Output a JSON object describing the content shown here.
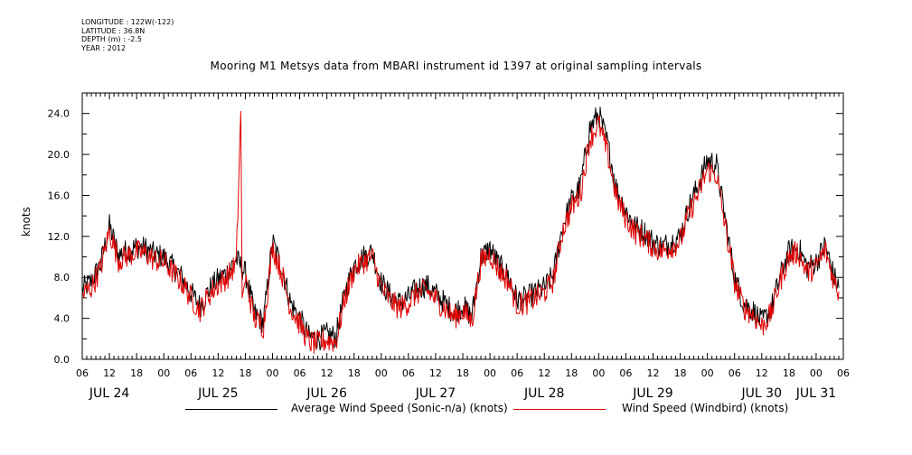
{
  "meta": {
    "longitude": "LONGITUDE : 122W(-122)",
    "latitude": "LATITUDE : 36.8N",
    "depth": "DEPTH (m) : -2.5",
    "year": "YEAR : 2012"
  },
  "chart_data": {
    "type": "line",
    "title": "Mooring M1 Metsys data from MBARI instrument id 1397 at original sampling intervals",
    "ylabel": "knots",
    "xlabel": "",
    "ylim": [
      0,
      26
    ],
    "xlim": [
      6,
      174
    ],
    "x_unit": "hours since 2012-07-24 00:00",
    "yticks": [
      0,
      4,
      8,
      12,
      16,
      20,
      24
    ],
    "ytick_labels": [
      "0.0",
      "4.0",
      "8.0",
      "12.0",
      "16.0",
      "20.0",
      "24.0"
    ],
    "xtick_hours": [
      6,
      12,
      18,
      24,
      30,
      36,
      42,
      48,
      54,
      60,
      66,
      72,
      78,
      84,
      90,
      96,
      102,
      108,
      114,
      120,
      126,
      132,
      138,
      144,
      150,
      156,
      162,
      168,
      174
    ],
    "xtick_labels": [
      "06",
      "12",
      "18",
      "00",
      "06",
      "12",
      "18",
      "00",
      "06",
      "12",
      "18",
      "00",
      "06",
      "12",
      "18",
      "00",
      "06",
      "12",
      "18",
      "00",
      "06",
      "12",
      "18",
      "00",
      "06",
      "12",
      "18",
      "00",
      "06"
    ],
    "day_label_hours": [
      12,
      36,
      60,
      84,
      108,
      132,
      156,
      168
    ],
    "day_labels": [
      "JUL 24",
      "JUL 25",
      "JUL 26",
      "JUL 27",
      "JUL 28",
      "JUL 29",
      "JUL 30",
      "JUL 31"
    ],
    "grid": false,
    "legend_position": "bottom",
    "series": [
      {
        "name": "Average Wind Speed (Sonic-n/a) (knots)",
        "color": "#000000",
        "x": [
          6,
          8,
          10,
          12,
          14,
          16,
          18,
          20,
          22,
          24,
          26,
          28,
          30,
          32,
          34,
          36,
          38,
          40,
          42,
          44,
          46,
          48,
          50,
          52,
          54,
          56,
          58,
          60,
          62,
          64,
          66,
          68,
          70,
          72,
          74,
          76,
          78,
          80,
          82,
          84,
          86,
          88,
          90,
          92,
          94,
          96,
          98,
          100,
          102,
          104,
          106,
          108,
          110,
          112,
          114,
          116,
          118,
          120,
          122,
          124,
          126,
          128,
          130,
          132,
          134,
          136,
          138,
          140,
          142,
          144,
          146,
          148,
          150,
          152,
          154,
          156,
          158,
          160,
          162,
          164,
          166,
          168,
          170,
          172,
          173
        ],
        "y": [
          6.8,
          7.6,
          9.2,
          13.0,
          10.2,
          10.6,
          11.0,
          10.8,
          10.2,
          10.0,
          9.0,
          8.0,
          6.5,
          5.2,
          6.8,
          7.8,
          8.5,
          9.8,
          8.4,
          4.5,
          3.6,
          11.5,
          9.0,
          5.5,
          4.0,
          2.2,
          2.0,
          2.4,
          2.2,
          6.5,
          9.2,
          10.0,
          10.5,
          7.5,
          6.2,
          5.5,
          6.0,
          7.0,
          7.2,
          6.4,
          5.5,
          4.6,
          5.2,
          4.2,
          10.0,
          10.8,
          9.2,
          8.2,
          5.8,
          6.0,
          6.5,
          7.0,
          8.2,
          13.0,
          15.5,
          17.0,
          22.5,
          24.0,
          21.0,
          16.5,
          14.5,
          13.0,
          12.5,
          11.5,
          11.0,
          11.5,
          12.0,
          15.0,
          17.0,
          19.5,
          19.0,
          13.5,
          8.0,
          5.5,
          4.8,
          3.6,
          4.8,
          8.0,
          10.5,
          11.0,
          9.0,
          9.5,
          11.2,
          8.0,
          7.0
        ]
      },
      {
        "name": "Wind Speed (Windbird) (knots)",
        "color": "#e00000",
        "x": [
          6,
          8,
          10,
          12,
          14,
          16,
          18,
          20,
          22,
          24,
          26,
          28,
          30,
          32,
          34,
          36,
          38,
          40,
          41,
          41.3,
          42,
          44,
          46,
          48,
          50,
          52,
          54,
          56,
          58,
          60,
          62,
          64,
          66,
          68,
          70,
          72,
          74,
          76,
          78,
          80,
          82,
          84,
          86,
          88,
          90,
          92,
          94,
          96,
          98,
          100,
          102,
          104,
          106,
          108,
          110,
          112,
          114,
          116,
          118,
          120,
          122,
          124,
          126,
          128,
          130,
          132,
          134,
          136,
          138,
          140,
          142,
          144,
          146,
          148,
          150,
          152,
          154,
          156,
          158,
          160,
          162,
          164,
          166,
          168,
          170,
          172,
          173
        ],
        "y": [
          6.3,
          7.0,
          8.8,
          12.5,
          9.7,
          10.1,
          10.5,
          10.3,
          9.7,
          9.5,
          8.5,
          7.5,
          6.0,
          4.8,
          6.3,
          7.3,
          8.0,
          9.3,
          24.2,
          6.0,
          7.9,
          4.0,
          3.2,
          11.0,
          8.5,
          5.0,
          3.5,
          1.7,
          1.5,
          1.9,
          1.7,
          6.0,
          8.7,
          9.5,
          10.0,
          7.0,
          5.7,
          5.0,
          5.5,
          6.5,
          6.7,
          5.9,
          5.0,
          4.1,
          4.7,
          3.7,
          9.5,
          10.3,
          8.7,
          7.7,
          5.3,
          5.5,
          6.0,
          6.5,
          7.7,
          12.5,
          14.8,
          16.2,
          21.5,
          23.0,
          20.0,
          15.7,
          13.8,
          12.4,
          11.9,
          11.0,
          10.5,
          11.0,
          11.5,
          14.3,
          16.2,
          18.5,
          18.0,
          12.8,
          7.6,
          5.1,
          4.4,
          3.2,
          4.4,
          7.6,
          10.0,
          10.5,
          8.5,
          9.0,
          10.7,
          7.6,
          6.6
        ]
      }
    ]
  },
  "legend": {
    "item1": "Average Wind Speed (Sonic-n/a) (knots)",
    "item2": "Wind Speed (Windbird) (knots)"
  }
}
